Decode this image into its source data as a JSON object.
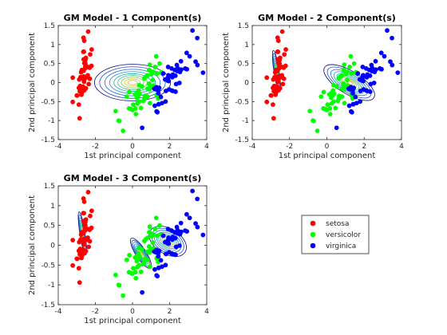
{
  "chart_data": [
    {
      "type": "scatter",
      "title": "GM Model - 1 Component(s)",
      "xlabel": "1st principal component",
      "ylabel": "2nd principal component",
      "xlim": [
        -4,
        4
      ],
      "ylim": [
        -1.5,
        1.5
      ],
      "xticks": [
        -4,
        -2,
        0,
        2,
        4
      ],
      "yticks": [
        -1.5,
        -1,
        -0.5,
        0,
        0.5,
        1,
        1.5
      ],
      "components": 1,
      "ellipses": [
        {
          "cx": 0,
          "cy": 0,
          "sx": 2.05,
          "sy": 0.48,
          "rot": 0,
          "color": "#000080"
        }
      ]
    },
    {
      "type": "scatter",
      "title": "GM Model - 2 Component(s)",
      "xlabel": "1st principal component",
      "ylabel": "2nd principal component",
      "xlim": [
        -4,
        4
      ],
      "ylim": [
        -1.5,
        1.5
      ],
      "xticks": [
        -4,
        -2,
        0,
        2,
        4
      ],
      "yticks": [
        -1.5,
        -1,
        -0.5,
        0,
        0.5,
        1,
        1.5
      ],
      "components": 2,
      "ellipses": [
        {
          "cx": -2.7,
          "cy": 0.3,
          "sx": 0.14,
          "sy": 0.55,
          "rot": 0.15,
          "color": "#000080"
        },
        {
          "cx": 1.2,
          "cy": 0.0,
          "sx": 1.55,
          "sy": 0.3,
          "rot": -0.55,
          "color": "#000080"
        }
      ]
    },
    {
      "type": "scatter",
      "title": "GM Model - 3 Component(s)",
      "xlabel": "1st principal component",
      "ylabel": "2nd principal component",
      "xlim": [
        -4,
        4
      ],
      "ylim": [
        -1.5,
        1.5
      ],
      "xticks": [
        -4,
        -2,
        0,
        2,
        4
      ],
      "yticks": [
        -1.5,
        -1,
        -0.5,
        0,
        0.5,
        1,
        1.5
      ],
      "components": 3,
      "ellipses": [
        {
          "cx": -2.7,
          "cy": 0.3,
          "sx": 0.14,
          "sy": 0.55,
          "rot": 0.15,
          "color": "#000080"
        },
        {
          "cx": 0.45,
          "cy": -0.2,
          "sx": 0.95,
          "sy": 0.13,
          "rot": -1.0,
          "color": "#000080"
        },
        {
          "cx": 1.9,
          "cy": 0.1,
          "sx": 1.1,
          "sy": 0.32,
          "rot": -0.55,
          "color": "#000080"
        }
      ]
    }
  ],
  "series": [
    {
      "name": "setosa",
      "color": "#ff0000",
      "points": [
        [
          -2.68,
          0.32
        ],
        [
          -2.71,
          -0.18
        ],
        [
          -2.89,
          -0.14
        ],
        [
          -2.75,
          -0.32
        ],
        [
          -2.73,
          0.33
        ],
        [
          -2.28,
          0.74
        ],
        [
          -2.82,
          -0.09
        ],
        [
          -2.63,
          0.16
        ],
        [
          -2.89,
          -0.58
        ],
        [
          -2.67,
          -0.11
        ],
        [
          -2.51,
          0.65
        ],
        [
          -2.61,
          0.02
        ],
        [
          -2.79,
          -0.24
        ],
        [
          -3.22,
          -0.51
        ],
        [
          -2.64,
          1.18
        ],
        [
          -2.39,
          1.34
        ],
        [
          -2.62,
          0.81
        ],
        [
          -2.65,
          0.31
        ],
        [
          -2.2,
          0.87
        ],
        [
          -2.59,
          0.51
        ],
        [
          -2.31,
          0.39
        ],
        [
          -2.54,
          0.43
        ],
        [
          -3.22,
          0.13
        ],
        [
          -2.3,
          0.1
        ],
        [
          -2.36,
          -0.04
        ],
        [
          -2.51,
          -0.15
        ],
        [
          -2.47,
          0.14
        ],
        [
          -2.56,
          0.37
        ],
        [
          -2.64,
          0.31
        ],
        [
          -2.63,
          -0.19
        ],
        [
          -2.59,
          -0.2
        ],
        [
          -2.41,
          0.41
        ],
        [
          -2.65,
          0.81
        ],
        [
          -2.6,
          1.1
        ],
        [
          -2.67,
          -0.11
        ],
        [
          -2.87,
          0.08
        ],
        [
          -2.63,
          0.61
        ],
        [
          -2.8,
          0.14
        ],
        [
          -2.98,
          -0.34
        ],
        [
          -2.59,
          0.09
        ],
        [
          -2.77,
          0.27
        ],
        [
          -2.85,
          -0.94
        ],
        [
          -3,
          -0.34
        ],
        [
          -2.41,
          0.19
        ],
        [
          -2.21,
          0.44
        ],
        [
          -2.71,
          -0.25
        ],
        [
          -2.54,
          0.5
        ],
        [
          -2.84,
          -0.23
        ],
        [
          -2.54,
          0.59
        ],
        [
          -2.7,
          0.11
        ]
      ]
    },
    {
      "name": "versicolor",
      "color": "#00ff00",
      "points": [
        [
          1.28,
          0.69
        ],
        [
          0.93,
          0.32
        ],
        [
          1.46,
          0.5
        ],
        [
          0.18,
          -0.83
        ],
        [
          1.09,
          0.07
        ],
        [
          0.64,
          -0.42
        ],
        [
          1.1,
          0.28
        ],
        [
          -0.75,
          -1
        ],
        [
          1.04,
          0.23
        ],
        [
          -0.01,
          -0.72
        ],
        [
          -0.51,
          -1.27
        ],
        [
          0.51,
          -0.1
        ],
        [
          0.26,
          -0.55
        ],
        [
          0.98,
          -0.12
        ],
        [
          -0.17,
          -0.25
        ],
        [
          0.93,
          0.47
        ],
        [
          0.66,
          -0.35
        ],
        [
          0.23,
          -0.33
        ],
        [
          0.94,
          -0.54
        ],
        [
          0.04,
          -0.58
        ],
        [
          1.12,
          -0.08
        ],
        [
          0.36,
          -0.07
        ],
        [
          1.3,
          -0.33
        ],
        [
          0.92,
          -0.18
        ],
        [
          0.71,
          0.15
        ],
        [
          0.9,
          0.33
        ],
        [
          1.33,
          0.24
        ],
        [
          1.56,
          0.27
        ],
        [
          0.81,
          -0.16
        ],
        [
          -0.31,
          -0.37
        ],
        [
          -0.07,
          -0.7
        ],
        [
          -0.19,
          -0.68
        ],
        [
          0.14,
          -0.31
        ],
        [
          1.38,
          -0.42
        ],
        [
          0.59,
          -0.48
        ],
        [
          0.81,
          0.19
        ],
        [
          1.22,
          0.41
        ],
        [
          0.81,
          -0.37
        ],
        [
          0.25,
          -0.27
        ],
        [
          0.16,
          -0.68
        ],
        [
          0.46,
          -0.67
        ],
        [
          0.89,
          -0.03
        ],
        [
          0.23,
          -0.4
        ],
        [
          -0.71,
          -1.01
        ],
        [
          0.36,
          -0.5
        ],
        [
          0.33,
          -0.21
        ],
        [
          0.38,
          -0.29
        ],
        [
          0.64,
          0.11
        ],
        [
          -0.91,
          -0.75
        ],
        [
          0.3,
          -0.35
        ]
      ]
    },
    {
      "name": "virginica",
      "color": "#0000ff",
      "points": [
        [
          2.53,
          -0.01
        ],
        [
          1.41,
          -0.57
        ],
        [
          2.62,
          0.34
        ],
        [
          1.97,
          -0.18
        ],
        [
          2.35,
          -0.04
        ],
        [
          3.4,
          0.55
        ],
        [
          0.52,
          -1.19
        ],
        [
          2.93,
          0.35
        ],
        [
          2.32,
          -0.24
        ],
        [
          2.92,
          0.78
        ],
        [
          1.66,
          0.24
        ],
        [
          1.8,
          -0.22
        ],
        [
          2.17,
          0.21
        ],
        [
          1.34,
          -0.78
        ],
        [
          1.59,
          -0.54
        ],
        [
          1.9,
          0.12
        ],
        [
          1.95,
          0.04
        ],
        [
          3.49,
          1.17
        ],
        [
          3.8,
          0.26
        ],
        [
          1.3,
          -0.76
        ],
        [
          2.43,
          0.38
        ],
        [
          1.2,
          -0.61
        ],
        [
          3.5,
          0.46
        ],
        [
          1.39,
          -0.2
        ],
        [
          2.28,
          0.33
        ],
        [
          2.61,
          0.56
        ],
        [
          1.26,
          -0.18
        ],
        [
          1.29,
          -0.12
        ],
        [
          2.12,
          -0.21
        ],
        [
          2.39,
          0.46
        ],
        [
          2.84,
          0.37
        ],
        [
          3.23,
          1.37
        ],
        [
          2.16,
          -0.22
        ],
        [
          1.44,
          -0.14
        ],
        [
          1.78,
          -0.5
        ],
        [
          3.08,
          0.69
        ],
        [
          2.14,
          0.14
        ],
        [
          1.9,
          0.05
        ],
        [
          1.17,
          -0.16
        ],
        [
          2.11,
          0.37
        ],
        [
          2.31,
          0.18
        ],
        [
          1.92,
          0.41
        ],
        [
          1.41,
          -0.57
        ],
        [
          2.56,
          0.28
        ],
        [
          2.42,
          0.3
        ],
        [
          1.94,
          0.19
        ],
        [
          1.53,
          -0.38
        ],
        [
          1.76,
          0.08
        ],
        [
          1.9,
          0.12
        ],
        [
          1.39,
          -0.28
        ]
      ]
    }
  ],
  "legend": {
    "placement": "right",
    "entries": [
      {
        "label": "setosa",
        "color": "#ff0000"
      },
      {
        "label": "versicolor",
        "color": "#00ff00"
      },
      {
        "label": "virginica",
        "color": "#0000ff"
      }
    ]
  }
}
